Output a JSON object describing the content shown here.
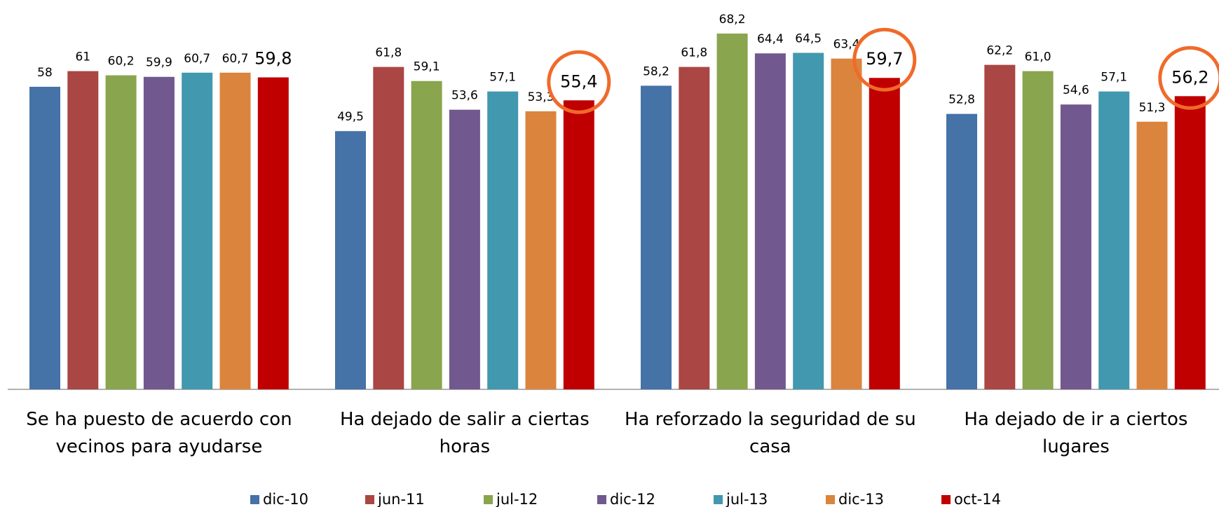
{
  "chart_data": {
    "type": "bar",
    "categories": [
      "Se ha puesto de acuerdo con vecinos para ayudarse",
      "Ha dejado de salir a ciertas horas",
      "Ha reforzado la seguridad de su casa",
      "Ha dejado de ir a ciertos lugares"
    ],
    "series": [
      {
        "name": "dic-10",
        "color": "#4572a7",
        "values": [
          58,
          49.5,
          58.2,
          52.8
        ],
        "value_labels": [
          "58",
          "49,5",
          "58,2",
          "52,8"
        ]
      },
      {
        "name": "jun-11",
        "color": "#aa4643",
        "values": [
          61,
          61.8,
          61.8,
          62.2
        ],
        "value_labels": [
          "61",
          "61,8",
          "61,8",
          "62,2"
        ]
      },
      {
        "name": "jul-12",
        "color": "#89a54e",
        "values": [
          60.2,
          59.1,
          68.2,
          61.0
        ],
        "value_labels": [
          "60,2",
          "59,1",
          "68,2",
          "61,0"
        ]
      },
      {
        "name": "dic-12",
        "color": "#71588f",
        "values": [
          59.9,
          53.6,
          64.4,
          54.6
        ],
        "value_labels": [
          "59,9",
          "53,6",
          "64,4",
          "54,6"
        ]
      },
      {
        "name": "jul-13",
        "color": "#4198af",
        "values": [
          60.7,
          57.1,
          64.5,
          57.1
        ],
        "value_labels": [
          "60,7",
          "57,1",
          "64,5",
          "57,1"
        ]
      },
      {
        "name": "dic-13",
        "color": "#db843d",
        "values": [
          60.7,
          53.3,
          63.4,
          51.3
        ],
        "value_labels": [
          "60,7",
          "53,3",
          "63,4",
          "51,3"
        ]
      },
      {
        "name": "oct-14",
        "color": "#c00000",
        "values": [
          59.8,
          55.4,
          59.7,
          56.2
        ],
        "value_labels": [
          "59,8",
          "55,4",
          "59,7",
          "56,2"
        ]
      }
    ]
  }
}
